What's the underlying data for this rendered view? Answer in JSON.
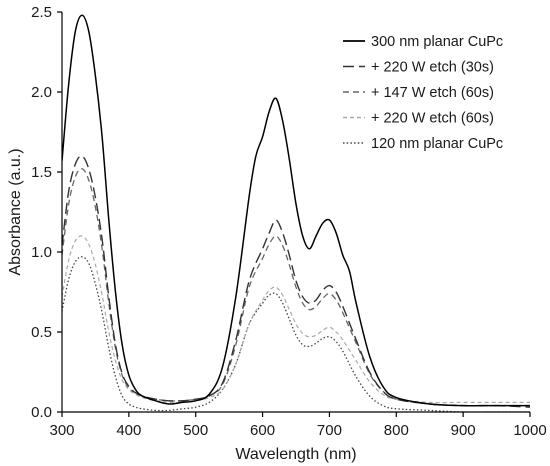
{
  "chart_data": {
    "type": "line",
    "xlabel": "Wavelength (nm)",
    "ylabel": "Absorbance (a.u.)",
    "xlim": [
      300,
      1000
    ],
    "ylim": [
      0,
      2.5
    ],
    "x_ticks": [
      300,
      400,
      500,
      600,
      700,
      800,
      900,
      1000
    ],
    "x_tick_labels": [
      "300",
      "400",
      "500",
      "600",
      "700",
      "800",
      "900",
      "1000"
    ],
    "y_ticks": [
      0,
      0.5,
      1,
      1.5,
      2,
      2.5
    ],
    "y_tick_labels": [
      "0.0",
      "0.5",
      "1.0",
      "1.5",
      "2.0",
      "2.5"
    ],
    "grid": false,
    "legend_position": "top-right",
    "series": [
      {
        "name": "300 nm planar CuPc",
        "color": "#000000",
        "dash": "solid",
        "x": [
          300,
          310,
          320,
          330,
          340,
          350,
          360,
          370,
          380,
          390,
          400,
          410,
          420,
          440,
          460,
          480,
          500,
          520,
          540,
          560,
          580,
          590,
          600,
          610,
          620,
          630,
          640,
          650,
          660,
          670,
          680,
          690,
          700,
          710,
          720,
          730,
          740,
          760,
          780,
          800,
          850,
          900,
          950,
          1000
        ],
        "y": [
          1.57,
          2.05,
          2.38,
          2.48,
          2.38,
          2.1,
          1.72,
          1.2,
          0.75,
          0.42,
          0.23,
          0.14,
          0.1,
          0.07,
          0.05,
          0.06,
          0.07,
          0.11,
          0.28,
          0.72,
          1.35,
          1.6,
          1.72,
          1.88,
          1.96,
          1.82,
          1.58,
          1.3,
          1.1,
          1.02,
          1.1,
          1.18,
          1.2,
          1.12,
          0.98,
          0.88,
          0.68,
          0.35,
          0.16,
          0.09,
          0.05,
          0.04,
          0.04,
          0.04
        ]
      },
      {
        "name": "+ 220 W etch (30s)",
        "color": "#333333",
        "dash": "long-dash",
        "x": [
          300,
          310,
          320,
          330,
          340,
          350,
          360,
          370,
          380,
          390,
          400,
          410,
          420,
          440,
          460,
          480,
          500,
          520,
          540,
          560,
          580,
          600,
          610,
          620,
          630,
          640,
          650,
          660,
          670,
          680,
          690,
          700,
          710,
          720,
          740,
          760,
          780,
          800,
          850,
          900,
          950,
          1000
        ],
        "y": [
          1.04,
          1.38,
          1.55,
          1.6,
          1.52,
          1.34,
          1.08,
          0.72,
          0.42,
          0.24,
          0.16,
          0.12,
          0.1,
          0.08,
          0.07,
          0.07,
          0.08,
          0.1,
          0.18,
          0.45,
          0.82,
          1.02,
          1.12,
          1.2,
          1.12,
          0.98,
          0.82,
          0.72,
          0.68,
          0.7,
          0.76,
          0.79,
          0.75,
          0.66,
          0.45,
          0.25,
          0.13,
          0.08,
          0.05,
          0.04,
          0.04,
          0.03
        ]
      },
      {
        "name": "+ 147 W etch (60s)",
        "color": "#666666",
        "dash": "short-dash",
        "x": [
          300,
          310,
          320,
          330,
          340,
          350,
          360,
          370,
          380,
          390,
          400,
          410,
          420,
          440,
          460,
          480,
          500,
          520,
          540,
          560,
          580,
          600,
          610,
          620,
          630,
          640,
          650,
          660,
          670,
          680,
          690,
          700,
          710,
          720,
          740,
          760,
          780,
          800,
          850,
          900,
          950,
          1000
        ],
        "y": [
          0.98,
          1.3,
          1.47,
          1.52,
          1.45,
          1.28,
          1.02,
          0.68,
          0.4,
          0.23,
          0.15,
          0.12,
          0.1,
          0.08,
          0.07,
          0.07,
          0.08,
          0.1,
          0.17,
          0.42,
          0.78,
          0.96,
          1.05,
          1.1,
          1.04,
          0.92,
          0.78,
          0.68,
          0.64,
          0.66,
          0.71,
          0.74,
          0.7,
          0.62,
          0.43,
          0.24,
          0.13,
          0.08,
          0.05,
          0.04,
          0.04,
          0.04
        ]
      },
      {
        "name": "+ 220 W etch (60s)",
        "color": "#aaaaaa",
        "dash": "dash",
        "x": [
          300,
          310,
          320,
          330,
          340,
          350,
          360,
          370,
          380,
          390,
          400,
          410,
          420,
          440,
          460,
          480,
          500,
          520,
          540,
          560,
          580,
          600,
          610,
          620,
          630,
          640,
          650,
          660,
          670,
          680,
          690,
          700,
          710,
          720,
          740,
          760,
          780,
          800,
          850,
          900,
          950,
          1000
        ],
        "y": [
          0.72,
          0.95,
          1.07,
          1.1,
          1.05,
          0.92,
          0.73,
          0.5,
          0.32,
          0.2,
          0.14,
          0.11,
          0.09,
          0.07,
          0.06,
          0.06,
          0.07,
          0.09,
          0.14,
          0.3,
          0.55,
          0.7,
          0.76,
          0.78,
          0.73,
          0.64,
          0.55,
          0.49,
          0.47,
          0.48,
          0.51,
          0.53,
          0.5,
          0.45,
          0.32,
          0.19,
          0.11,
          0.08,
          0.06,
          0.06,
          0.06,
          0.06
        ]
      },
      {
        "name": "120 nm planar CuPc",
        "color": "#444444",
        "dash": "dot",
        "x": [
          300,
          310,
          320,
          330,
          340,
          350,
          360,
          370,
          380,
          390,
          400,
          410,
          420,
          440,
          460,
          480,
          500,
          520,
          540,
          560,
          580,
          600,
          610,
          620,
          630,
          640,
          650,
          660,
          670,
          680,
          690,
          700,
          710,
          720,
          740,
          760,
          780,
          800,
          850,
          900,
          950,
          1000
        ],
        "y": [
          0.63,
          0.83,
          0.94,
          0.97,
          0.93,
          0.8,
          0.62,
          0.4,
          0.22,
          0.1,
          0.05,
          0.03,
          0.02,
          0.01,
          0.01,
          0.02,
          0.03,
          0.06,
          0.14,
          0.3,
          0.55,
          0.68,
          0.73,
          0.74,
          0.68,
          0.58,
          0.48,
          0.42,
          0.41,
          0.43,
          0.46,
          0.47,
          0.44,
          0.38,
          0.22,
          0.1,
          0.04,
          0.02,
          0.01,
          0.0,
          0.0,
          0.0
        ]
      }
    ]
  }
}
